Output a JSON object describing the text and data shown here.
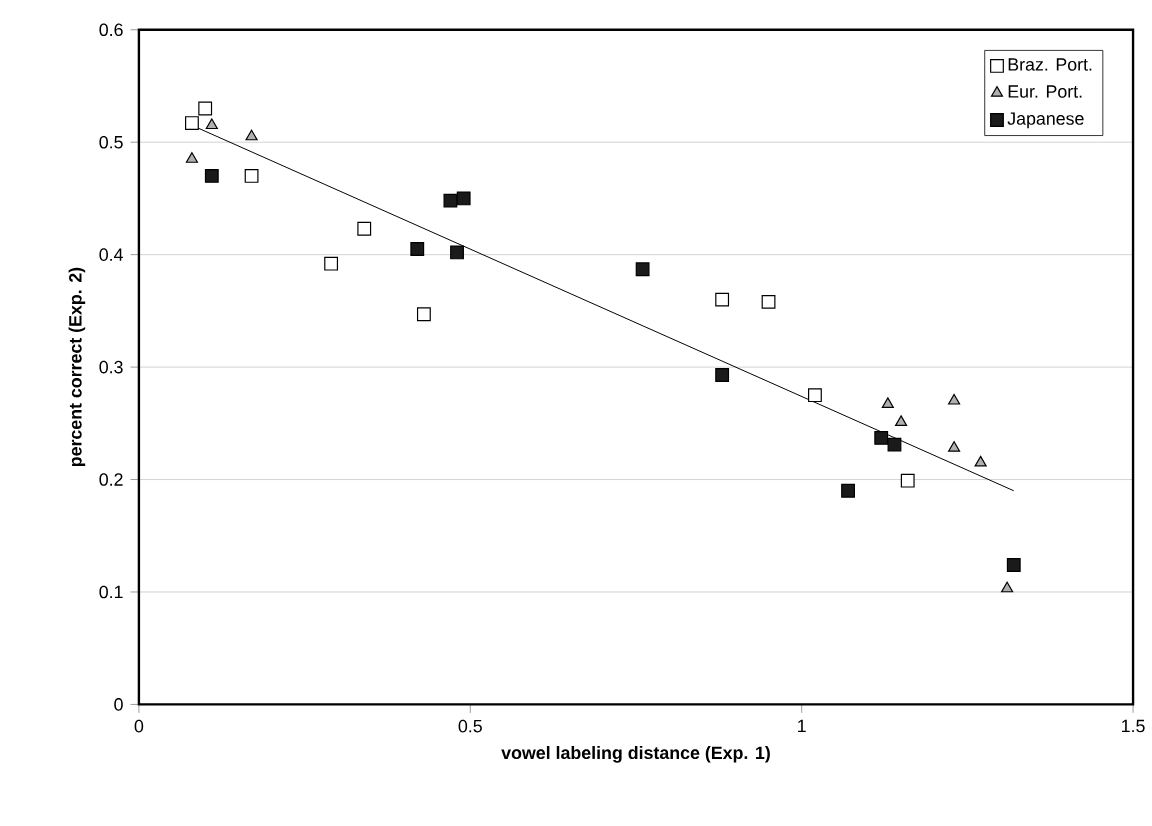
{
  "chart_data": {
    "type": "scatter",
    "xlabel": "vowel labeling distance (Exp. 1)",
    "ylabel": "percent correct (Exp. 2)",
    "xlim": [
      0,
      1.5
    ],
    "xticks": [
      0,
      0.5,
      1,
      1.5
    ],
    "ylim": [
      0,
      0.6
    ],
    "yticks": [
      0,
      0.1,
      0.2,
      0.3,
      0.4,
      0.5,
      0.6
    ],
    "grid": "y",
    "legend": "top right",
    "series": [
      {
        "name": "Braz. Port.",
        "color": "#ffffff",
        "marker": "square",
        "x": [
          0.08,
          0.1,
          0.17,
          0.29,
          0.34,
          0.43,
          0.88,
          0.95,
          1.02,
          1.16
        ],
        "values": [
          0.517,
          0.53,
          0.47,
          0.392,
          0.423,
          0.347,
          0.36,
          0.358,
          0.275,
          0.199
        ]
      },
      {
        "name": "Eur. Port.",
        "color": "#b0b0b0",
        "marker": "triangle",
        "x": [
          0.08,
          0.11,
          0.17,
          1.13,
          1.15,
          1.23,
          1.23,
          1.27,
          1.31
        ],
        "values": [
          0.485,
          0.515,
          0.505,
          0.267,
          0.251,
          0.27,
          0.228,
          0.215,
          0.103
        ]
      },
      {
        "name": "Japanese",
        "color": "#1a1a1a",
        "marker": "square",
        "x": [
          0.11,
          0.42,
          0.47,
          0.49,
          0.48,
          0.76,
          0.88,
          1.07,
          1.12,
          1.14,
          1.32
        ],
        "values": [
          0.47,
          0.405,
          0.448,
          0.45,
          0.402,
          0.387,
          0.293,
          0.19,
          0.237,
          0.231,
          0.124
        ]
      },
      {
        "type": "line",
        "color": "#000000",
        "marker": "none",
        "x": [
          0.08,
          1.32
        ],
        "values": [
          0.515,
          0.19
        ]
      }
    ]
  }
}
